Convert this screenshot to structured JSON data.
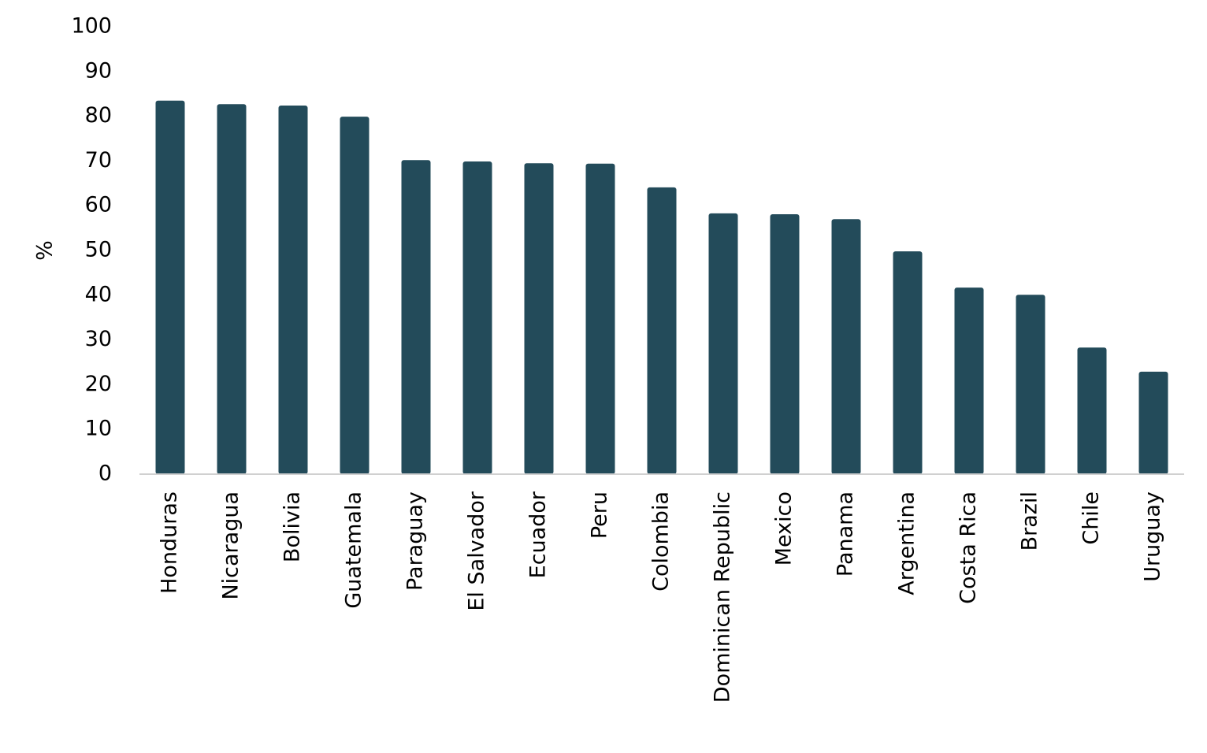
{
  "chart_data": {
    "type": "bar",
    "y_label": "%",
    "categories": [
      "Honduras",
      "Nicaragua",
      "Bolivia",
      "Guatemala",
      "Paraguay",
      "El Salvador",
      "Ecuador",
      "Peru",
      "Colombia",
      "Dominican Republic",
      "Mexico",
      "Panama",
      "Argentina",
      "Costa Rica",
      "Brazil",
      "Chile",
      "Uruguay"
    ],
    "values": [
      83.5,
      82.7,
      82.4,
      79.9,
      70.2,
      69.9,
      69.5,
      69.4,
      64.1,
      58.3,
      58.1,
      57.0,
      49.8,
      41.7,
      40.1,
      28.3,
      22.9
    ],
    "color": "#234b5a",
    "ylim": [
      0,
      100
    ],
    "yticks": [
      0,
      10,
      20,
      30,
      40,
      50,
      60,
      70,
      80,
      90,
      100
    ],
    "grid": false
  }
}
